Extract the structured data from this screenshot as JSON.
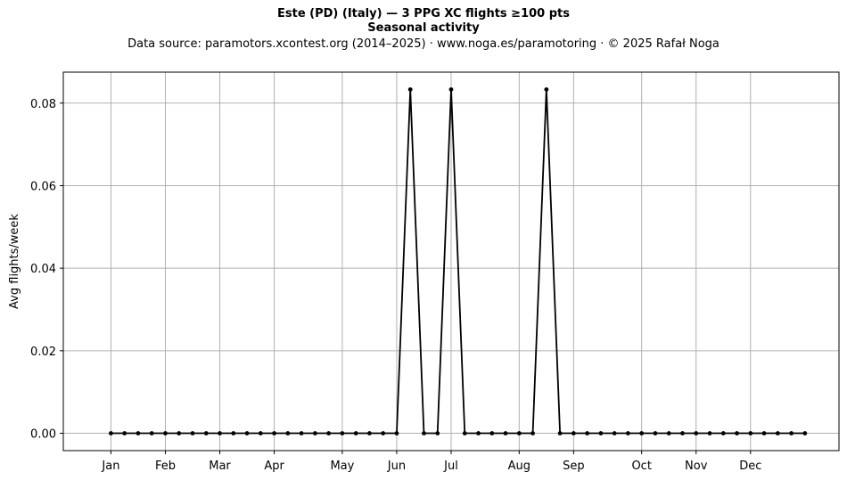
{
  "chart_data": {
    "type": "line",
    "title": "Este (PD) (Italy)  —  3 PPG XC flights ≥100 pts",
    "subtitle": "Seasonal activity",
    "source": "Data source: paramotors.xcontest.org (2014–2025)  ·  www.noga.es/paramotoring  ·  © 2025 Rafał Noga",
    "xlabel": "",
    "ylabel": "Avg flights/week",
    "xlim": [
      -2.5,
      54.5
    ],
    "ylim": [
      -0.0042,
      0.0875
    ],
    "grid": true,
    "x_ticks": [
      {
        "label": "Jan",
        "x": 1
      },
      {
        "label": "Feb",
        "x": 5
      },
      {
        "label": "Mar",
        "x": 9
      },
      {
        "label": "Apr",
        "x": 13
      },
      {
        "label": "May",
        "x": 18
      },
      {
        "label": "Jun",
        "x": 22
      },
      {
        "label": "Jul",
        "x": 26
      },
      {
        "label": "Aug",
        "x": 31
      },
      {
        "label": "Sep",
        "x": 35
      },
      {
        "label": "Oct",
        "x": 40
      },
      {
        "label": "Nov",
        "x": 44
      },
      {
        "label": "Dec",
        "x": 48
      }
    ],
    "y_ticks": [
      {
        "label": "0.00",
        "y": 0.0
      },
      {
        "label": "0.02",
        "y": 0.02
      },
      {
        "label": "0.04",
        "y": 0.04
      },
      {
        "label": "0.06",
        "y": 0.06
      },
      {
        "label": "0.08",
        "y": 0.08
      }
    ],
    "series": [
      {
        "color": "#000000",
        "x": [
          1,
          2,
          3,
          4,
          5,
          6,
          7,
          8,
          9,
          10,
          11,
          12,
          13,
          14,
          15,
          16,
          17,
          18,
          19,
          20,
          21,
          22,
          23,
          24,
          25,
          26,
          27,
          28,
          29,
          30,
          31,
          32,
          33,
          34,
          35,
          36,
          37,
          38,
          39,
          40,
          41,
          42,
          43,
          44,
          45,
          46,
          47,
          48,
          49,
          50,
          51,
          52
        ],
        "values": [
          0,
          0,
          0,
          0,
          0,
          0,
          0,
          0,
          0,
          0,
          0,
          0,
          0,
          0,
          0,
          0,
          0,
          0,
          0,
          0,
          0,
          0,
          0.0833,
          0,
          0,
          0.0833,
          0,
          0,
          0,
          0,
          0,
          0,
          0.0833,
          0,
          0,
          0,
          0,
          0,
          0,
          0,
          0,
          0,
          0,
          0,
          0,
          0,
          0,
          0,
          0,
          0,
          0,
          0
        ]
      }
    ]
  }
}
